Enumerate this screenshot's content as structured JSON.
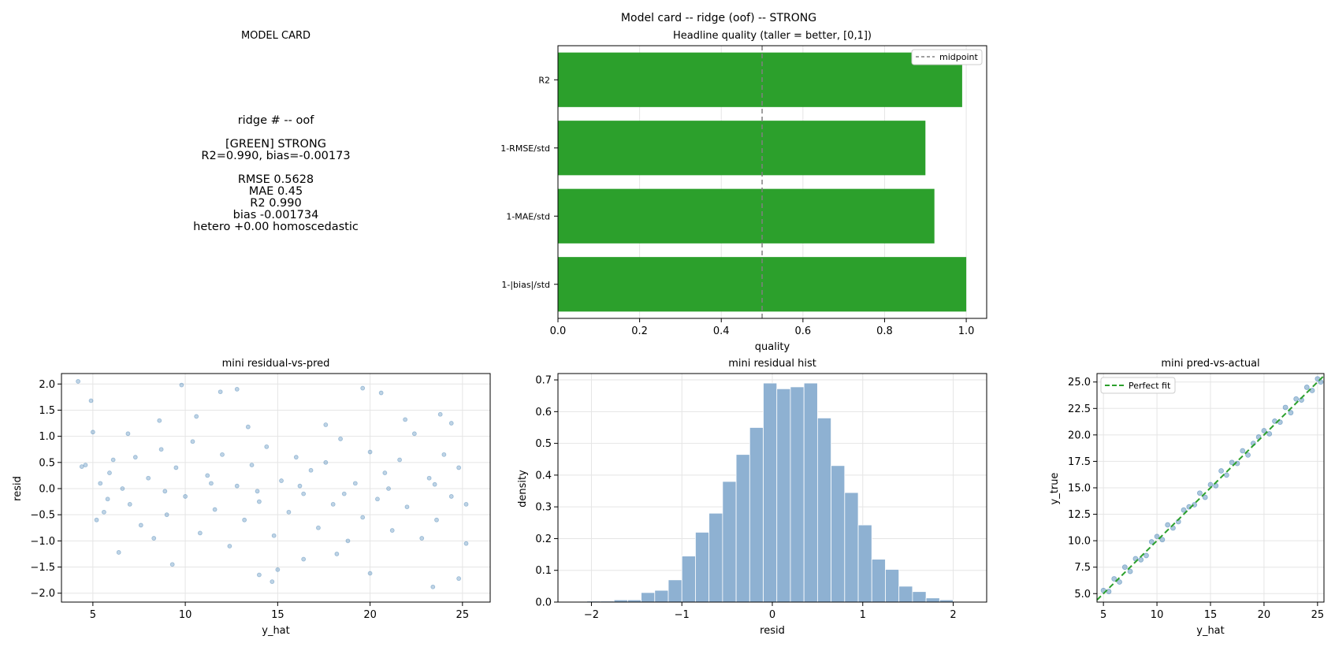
{
  "figure": {
    "suptitle": "Model card -- ridge (oof) -- STRONG"
  },
  "model_card": {
    "heading": "MODEL CARD",
    "lines": [
      "ridge  # --  oof",
      "",
      "[GREEN] STRONG",
      "R2=0.990, bias=-0.00173",
      "",
      "RMSE       0.5628",
      "MAE        0.45",
      "R2         0.990",
      "bias       -0.001734",
      "hetero     +0.00 homoscedastic"
    ]
  },
  "colors": {
    "quality_bar": "#2ca02c",
    "scatter_point": "#4682b4",
    "hist_bar": "#8eb1d2",
    "perfect_fit": "#2ca02c",
    "midpoint": "#808080",
    "grid": "#e5e5e5"
  },
  "chart_data": [
    {
      "type": "bar",
      "orientation": "horizontal",
      "title": "Headline quality (taller = better, [0,1])",
      "xlabel": "quality",
      "ylabel": "",
      "categories": [
        "R2",
        "1-RMSE/std",
        "1-MAE/std",
        "1-|bias|/std"
      ],
      "values": [
        0.99,
        0.9,
        0.922,
        1.0
      ],
      "xlim": [
        0,
        1.05
      ],
      "xticks": [
        0.0,
        0.2,
        0.4,
        0.6,
        0.8,
        1.0
      ],
      "reference_line": {
        "x": 0.5,
        "label": "midpoint"
      },
      "legend": "top-right",
      "grid": true
    },
    {
      "type": "scatter",
      "title": "mini residual-vs-pred",
      "xlabel": "y_hat",
      "ylabel": "resid",
      "xlim": [
        3.3,
        26.5
      ],
      "ylim": [
        -2.17,
        2.2
      ],
      "xticks": [
        5,
        10,
        15,
        20,
        25
      ],
      "yticks": [
        -2.0,
        -1.5,
        -1.0,
        -0.5,
        0.0,
        0.5,
        1.0,
        1.5,
        2.0
      ],
      "grid": true,
      "points": [
        [
          4.2,
          2.05
        ],
        [
          4.9,
          1.68
        ],
        [
          9.8,
          1.98
        ],
        [
          11.9,
          1.85
        ],
        [
          12.8,
          1.9
        ],
        [
          19.6,
          1.92
        ],
        [
          20.6,
          1.83
        ],
        [
          14.7,
          -1.78
        ],
        [
          15.0,
          -1.55
        ],
        [
          14.0,
          -1.65
        ],
        [
          23.4,
          -1.88
        ],
        [
          24.8,
          -1.72
        ],
        [
          9.3,
          -1.45
        ],
        [
          20.0,
          -1.62
        ],
        [
          25.2,
          -1.05
        ],
        [
          16.4,
          -1.35
        ],
        [
          18.2,
          -1.25
        ],
        [
          6.4,
          -1.22
        ],
        [
          8.6,
          1.3
        ],
        [
          10.6,
          1.38
        ],
        [
          21.9,
          1.32
        ],
        [
          23.8,
          1.42
        ],
        [
          24.4,
          1.25
        ],
        [
          13.4,
          1.18
        ],
        [
          17.6,
          1.22
        ],
        [
          6.9,
          1.05
        ],
        [
          5.0,
          1.08
        ],
        [
          4.6,
          0.45
        ],
        [
          4.4,
          0.42
        ],
        [
          5.4,
          0.1
        ],
        [
          5.8,
          -0.2
        ],
        [
          6.1,
          0.55
        ],
        [
          5.6,
          -0.45
        ],
        [
          5.2,
          -0.6
        ],
        [
          5.9,
          0.3
        ],
        [
          7.0,
          -0.3
        ],
        [
          7.3,
          0.6
        ],
        [
          7.6,
          -0.7
        ],
        [
          8.0,
          0.2
        ],
        [
          8.3,
          -0.95
        ],
        [
          8.7,
          0.75
        ],
        [
          9.0,
          -0.5
        ],
        [
          9.5,
          0.4
        ],
        [
          10.0,
          -0.15
        ],
        [
          10.4,
          0.9
        ],
        [
          10.8,
          -0.85
        ],
        [
          11.2,
          0.25
        ],
        [
          11.6,
          -0.4
        ],
        [
          12.0,
          0.65
        ],
        [
          12.4,
          -1.1
        ],
        [
          12.8,
          0.05
        ],
        [
          13.2,
          -0.6
        ],
        [
          13.6,
          0.45
        ],
        [
          14.0,
          -0.25
        ],
        [
          14.4,
          0.8
        ],
        [
          14.8,
          -0.9
        ],
        [
          15.2,
          0.15
        ],
        [
          15.6,
          -0.45
        ],
        [
          16.0,
          0.6
        ],
        [
          16.4,
          -0.1
        ],
        [
          16.8,
          0.35
        ],
        [
          17.2,
          -0.75
        ],
        [
          17.6,
          0.5
        ],
        [
          18.0,
          -0.3
        ],
        [
          18.4,
          0.95
        ],
        [
          18.8,
          -1.0
        ],
        [
          19.2,
          0.1
        ],
        [
          19.6,
          -0.55
        ],
        [
          20.0,
          0.7
        ],
        [
          20.4,
          -0.2
        ],
        [
          20.8,
          0.3
        ],
        [
          21.2,
          -0.8
        ],
        [
          21.6,
          0.55
        ],
        [
          22.0,
          -0.35
        ],
        [
          22.4,
          1.05
        ],
        [
          22.8,
          -0.95
        ],
        [
          23.2,
          0.2
        ],
        [
          23.6,
          -0.6
        ],
        [
          24.0,
          0.65
        ],
        [
          24.4,
          -0.15
        ],
        [
          24.8,
          0.4
        ],
        [
          25.2,
          -0.3
        ],
        [
          6.6,
          0.0
        ],
        [
          8.9,
          -0.05
        ],
        [
          11.4,
          0.1
        ],
        [
          13.9,
          -0.05
        ],
        [
          16.2,
          0.05
        ],
        [
          18.6,
          -0.1
        ],
        [
          21.0,
          0.0
        ],
        [
          23.5,
          0.08
        ]
      ]
    },
    {
      "type": "bar",
      "subtype": "histogram",
      "title": "mini residual hist",
      "xlabel": "resid",
      "ylabel": "density",
      "xlim": [
        -2.37,
        2.37
      ],
      "ylim": [
        0,
        0.72
      ],
      "xticks": [
        -2,
        -1,
        0,
        1,
        2
      ],
      "yticks": [
        0.0,
        0.1,
        0.2,
        0.3,
        0.4,
        0.5,
        0.6,
        0.7
      ],
      "grid": true,
      "bin_edges": [
        -2.05,
        -1.9,
        -1.75,
        -1.6,
        -1.45,
        -1.3,
        -1.15,
        -1.0,
        -0.85,
        -0.7,
        -0.55,
        -0.4,
        -0.25,
        -0.1,
        0.05,
        0.2,
        0.35,
        0.5,
        0.65,
        0.8,
        0.95,
        1.1,
        1.25,
        1.4,
        1.55,
        1.7,
        1.85,
        2.0
      ],
      "values": [
        0.003,
        0.003,
        0.007,
        0.007,
        0.03,
        0.037,
        0.07,
        0.145,
        0.22,
        0.28,
        0.38,
        0.465,
        0.55,
        0.69,
        0.672,
        0.678,
        0.69,
        0.58,
        0.43,
        0.345,
        0.243,
        0.135,
        0.103,
        0.05,
        0.033,
        0.013,
        0.007
      ]
    },
    {
      "type": "scatter",
      "title": "mini pred-vs-actual",
      "xlabel": "y_hat",
      "ylabel": "y_true",
      "xlim": [
        4.4,
        25.6
      ],
      "ylim": [
        4.2,
        25.8
      ],
      "xticks": [
        5,
        10,
        15,
        20,
        25
      ],
      "yticks": [
        5.0,
        7.5,
        10.0,
        12.5,
        15.0,
        17.5,
        20.0,
        22.5,
        25.0
      ],
      "grid": true,
      "legend": "top-left",
      "reference_line": {
        "label": "Perfect fit",
        "from": [
          4.4,
          4.4
        ],
        "to": [
          25.6,
          25.6
        ]
      },
      "points": [
        [
          5.0,
          5.3
        ],
        [
          5.5,
          5.2
        ],
        [
          6.0,
          6.4
        ],
        [
          6.5,
          6.1
        ],
        [
          7.0,
          7.5
        ],
        [
          7.5,
          7.1
        ],
        [
          8.0,
          8.3
        ],
        [
          8.5,
          8.2
        ],
        [
          9.0,
          8.6
        ],
        [
          9.5,
          9.9
        ],
        [
          10.0,
          10.4
        ],
        [
          10.5,
          10.1
        ],
        [
          11.0,
          11.5
        ],
        [
          11.5,
          11.2
        ],
        [
          12.0,
          11.8
        ],
        [
          12.5,
          12.9
        ],
        [
          13.0,
          13.2
        ],
        [
          13.5,
          13.4
        ],
        [
          14.0,
          14.5
        ],
        [
          14.5,
          14.1
        ],
        [
          15.0,
          15.3
        ],
        [
          15.5,
          15.2
        ],
        [
          16.0,
          16.6
        ],
        [
          16.5,
          16.2
        ],
        [
          17.0,
          17.4
        ],
        [
          17.5,
          17.3
        ],
        [
          18.0,
          18.5
        ],
        [
          18.5,
          18.1
        ],
        [
          19.0,
          19.2
        ],
        [
          19.5,
          19.8
        ],
        [
          20.0,
          20.4
        ],
        [
          20.5,
          20.1
        ],
        [
          21.0,
          21.3
        ],
        [
          21.5,
          21.2
        ],
        [
          22.0,
          22.6
        ],
        [
          22.5,
          22.1
        ],
        [
          23.0,
          23.4
        ],
        [
          23.5,
          23.3
        ],
        [
          24.0,
          24.5
        ],
        [
          24.5,
          24.2
        ],
        [
          25.0,
          25.3
        ],
        [
          25.3,
          25.0
        ]
      ]
    }
  ]
}
